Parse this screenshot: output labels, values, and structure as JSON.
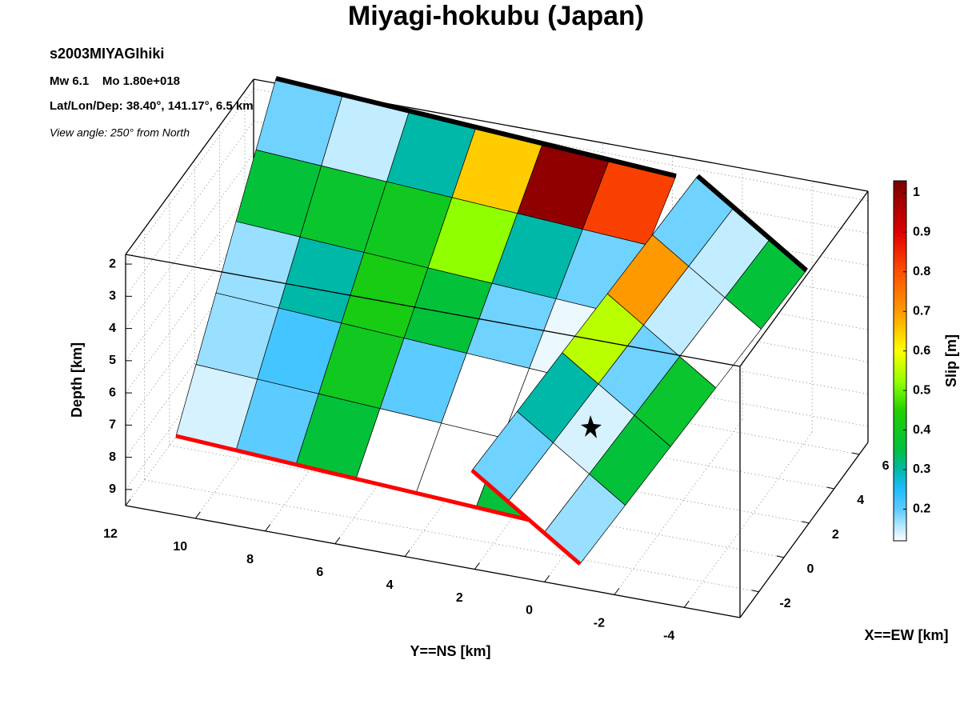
{
  "chart_data": {
    "type": "fault-slip-3d",
    "title": "Miyagi-hokubu (Japan)",
    "event_id": "s2003MIYAGIhiki",
    "magnitude_text": "Mw 6.1    Mo 1.80e+018",
    "location_text": "Lat/Lon/Dep: 38.40°, 141.17°, 6.5 km",
    "view_text": "View angle: 250° from North",
    "xlabel": "X==EW [km]",
    "ylabel": "Y==NS [km]",
    "zlabel": "Depth [km]",
    "colorbar_label": "Slip [m]",
    "xlim": [
      -3.5,
      6.7
    ],
    "xticks": [
      -2,
      0,
      2,
      4,
      6
    ],
    "ylim": [
      -5.6,
      12
    ],
    "yticks": [
      12,
      10,
      8,
      6,
      4,
      2,
      0,
      -2,
      -4
    ],
    "zlim": [
      1.7,
      9.5
    ],
    "zticks": [
      2,
      3,
      4,
      5,
      6,
      7,
      8,
      9
    ],
    "clim": [
      0.12,
      1.03
    ],
    "cticks": [
      0.2,
      0.3,
      0.4,
      0.5,
      0.6,
      0.7,
      0.8,
      0.9,
      1
    ],
    "grid": true,
    "colormap": [
      [
        0.12,
        "#ffffff"
      ],
      [
        0.2,
        "#5ccbff"
      ],
      [
        0.25,
        "#22bbff"
      ],
      [
        0.3,
        "#00b8a8"
      ],
      [
        0.35,
        "#00c040"
      ],
      [
        0.45,
        "#22d000"
      ],
      [
        0.52,
        "#90ff00"
      ],
      [
        0.6,
        "#ffff00"
      ],
      [
        0.7,
        "#ff9900"
      ],
      [
        0.8,
        "#ff5000"
      ],
      [
        0.9,
        "#e00000"
      ],
      [
        1.03,
        "#780000"
      ]
    ],
    "faults": [
      {
        "slip": [
          [
            0.19,
            0.15,
            0.3,
            0.65,
            1.0,
            0.82
          ],
          [
            0.36,
            0.38,
            0.4,
            0.52,
            0.3,
            0.19
          ],
          [
            0.17,
            0.3,
            0.42,
            0.36,
            0.19,
            0.13
          ],
          [
            0.17,
            0.22,
            0.4,
            0.2,
            0.12,
            0.12
          ],
          [
            0.14,
            0.2,
            0.36,
            0.12,
            0.12,
            0.36
          ]
        ]
      },
      {
        "slip": [
          [
            0.19,
            0.15,
            0.36
          ],
          [
            0.7,
            0.15,
            0.12
          ],
          [
            0.55,
            0.19,
            0.38
          ],
          [
            0.3,
            0.14,
            0.36
          ],
          [
            0.19,
            0.12,
            0.17
          ]
        ]
      }
    ]
  }
}
